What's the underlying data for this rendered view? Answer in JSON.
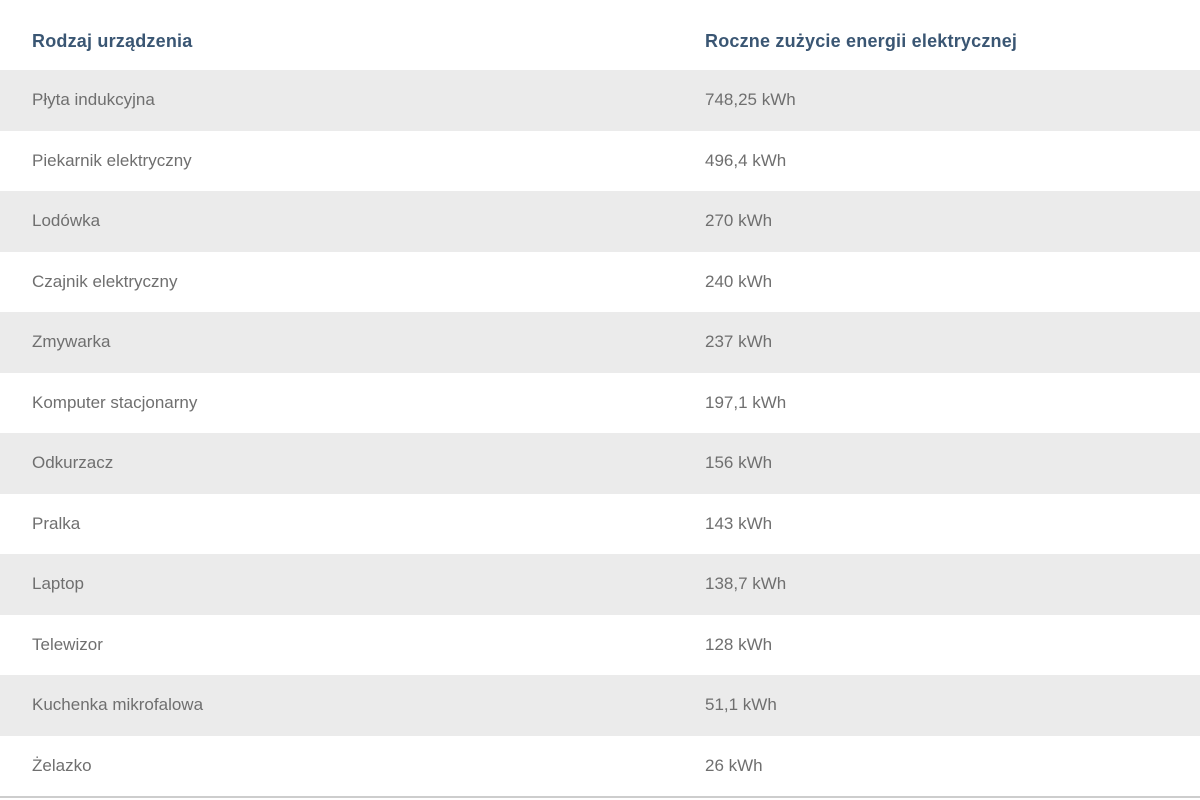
{
  "theme": {
    "header_text": "#3a5673",
    "row_text": "#6f6f6f",
    "stripe_bg": "#ebebeb",
    "bottom_border": "#cdcdcd",
    "page_bg": "#ffffff"
  },
  "table": {
    "columns": [
      {
        "label": "Rodzaj urządzenia"
      },
      {
        "label": "Roczne zużycie energii elektrycznej"
      }
    ],
    "rows": [
      {
        "device": "Płyta indukcyjna",
        "value_label": "748,25 kWh"
      },
      {
        "device": "Piekarnik elektryczny",
        "value_label": "496,4 kWh"
      },
      {
        "device": "Lodówka",
        "value_label": "270 kWh"
      },
      {
        "device": "Czajnik elektryczny",
        "value_label": "240 kWh"
      },
      {
        "device": "Zmywarka",
        "value_label": "237 kWh"
      },
      {
        "device": "Komputer stacjonarny",
        "value_label": "197,1 kWh"
      },
      {
        "device": "Odkurzacz",
        "value_label": "156 kWh"
      },
      {
        "device": "Pralka",
        "value_label": "143 kWh"
      },
      {
        "device": "Laptop",
        "value_label": "138,7 kWh"
      },
      {
        "device": "Telewizor",
        "value_label": "128 kWh"
      },
      {
        "device": "Kuchenka mikrofalowa",
        "value_label": "51,1 kWh"
      },
      {
        "device": "Żelazko",
        "value_label": "26 kWh"
      }
    ]
  },
  "chart_data": {
    "type": "table",
    "title": "",
    "columns": [
      "Rodzaj urządzenia",
      "Roczne zużycie energii elektrycznej"
    ],
    "categories": [
      "Płyta indukcyjna",
      "Piekarnik elektryczny",
      "Lodówka",
      "Czajnik elektryczny",
      "Zmywarka",
      "Komputer stacjonarny",
      "Odkurzacz",
      "Pralka",
      "Laptop",
      "Telewizor",
      "Kuchenka mikrofalowa",
      "Żelazko"
    ],
    "values": [
      748.25,
      496.4,
      270,
      240,
      237,
      197.1,
      156,
      143,
      138.7,
      128,
      51.1,
      26
    ],
    "unit": "kWh",
    "layout": "striped rows, first stripe gray, header bold navy, no vertical gridlines"
  }
}
